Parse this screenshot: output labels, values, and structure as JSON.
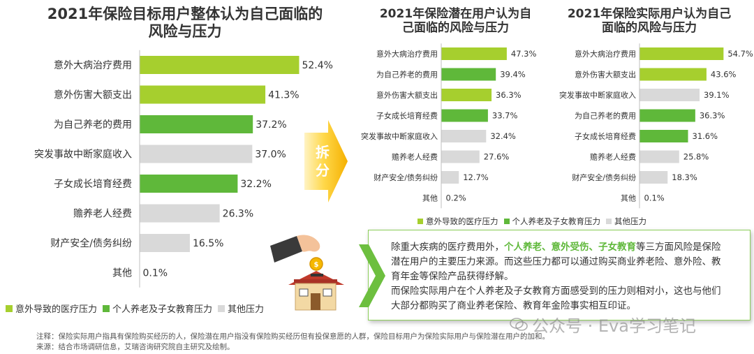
{
  "colors": {
    "green_light": "#a6cf2e",
    "green_dark": "#5fb83a",
    "gray": "#d9d9d9",
    "arrow_orange": "#f5b800"
  },
  "chart_data": [
    {
      "type": "bar",
      "orientation": "horizontal",
      "title": "2021年保险目标用户整体认为自己面临的风险与压力",
      "categories": [
        "意外大病治疗费用",
        "意外伤害大额支出",
        "为自己养老的费用",
        "突发事故中断家庭收入",
        "子女成长培育经费",
        "赡养老人经费",
        "财产安全/债务纠纷",
        "其他"
      ],
      "values": [
        52.4,
        41.3,
        37.2,
        37.0,
        32.2,
        26.3,
        16.5,
        0.1
      ],
      "value_labels": [
        "52.4%",
        "41.3%",
        "37.2%",
        "37.0%",
        "32.2%",
        "26.3%",
        "16.5%",
        "0.1%"
      ],
      "groups": [
        "medical",
        "medical",
        "family",
        "other",
        "family",
        "other",
        "other",
        "other"
      ],
      "unit": "%"
    },
    {
      "type": "bar",
      "orientation": "horizontal",
      "title": "2021年保险潜在用户认为自己面临的风险与压力",
      "categories": [
        "意外大病治疗费用",
        "为自己养老的费用",
        "意外伤害大额支出",
        "子女成长培育经费",
        "突发事故中断家庭收入",
        "赡养老人经费",
        "财产安全/债务纠纷",
        "其他"
      ],
      "values": [
        47.3,
        39.4,
        36.3,
        33.7,
        32.4,
        27.6,
        12.7,
        0.2
      ],
      "value_labels": [
        "47.3%",
        "39.4%",
        "36.3%",
        "33.7%",
        "32.4%",
        "27.6%",
        "12.7%",
        "0.2%"
      ],
      "groups": [
        "medical",
        "family",
        "medical",
        "family",
        "other",
        "other",
        "other",
        "other"
      ],
      "unit": "%"
    },
    {
      "type": "bar",
      "orientation": "horizontal",
      "title": "2021年保险实际用户认为自己面临的风险与压力",
      "categories": [
        "意外大病治疗费用",
        "意外伤害大额支出",
        "突发事故中断家庭收入",
        "为自己养老的费用",
        "子女成长培育经费",
        "赡养老人经费",
        "财产安全/债务纠纷",
        "其他"
      ],
      "values": [
        54.7,
        43.6,
        39.1,
        36.3,
        31.6,
        25.8,
        18.3,
        0.1
      ],
      "value_labels": [
        "54.7%",
        "43.6%",
        "39.1%",
        "36.3%",
        "31.6%",
        "25.8%",
        "18.3%",
        "0.1%"
      ],
      "groups": [
        "medical",
        "medical",
        "other",
        "family",
        "family",
        "other",
        "other",
        "other"
      ],
      "unit": "%"
    }
  ],
  "titles": {
    "left_line1": "2021年保险目标用户整体认为自己面临的",
    "left_line2": "风险与压力",
    "mid_line1": "2021年保险潜在用户认为自",
    "mid_line2": "己面临的风险与压力",
    "right_line1": "2021年保险实际用户认为自己",
    "right_line2": "面临的风险与压力"
  },
  "legend": {
    "medical": "意外导致的医疗压力",
    "family": "个人养老及子女教育压力",
    "other": "其他压力"
  },
  "arrow": {
    "label_line1": "拆",
    "label_line2": "分"
  },
  "callout": {
    "p1_before": "除重大疾病的医疗费用外，",
    "p1_hl": "个人养老、意外受伤、子女教育",
    "p1_after": "等三方面风险是保险潜在用户的主要压力来源。而这些压力都可以通过购买商业养老险、意外险、教育年金等保险产品获得纾解。",
    "p2": "而保险实际用户在个人养老及子女教育方面感受到的压力则相对小，这也与他们大部分都购买了商业养老保险、教育年金险事实相互印证。"
  },
  "notes": {
    "note": "注释：保险实际用户指具有保险购买经历的人，保险潜在用户指没有保险购买经历但有投保意愿的人群，保险目标用户为保险实际用户与保险潜在用户的加和。",
    "source": "来源：结合市场调研信息，艾瑞咨询研究院自主研究及绘制。"
  },
  "watermark": "公众号 · Eva学习笔记",
  "illustration": "hand-coin-house-icon"
}
